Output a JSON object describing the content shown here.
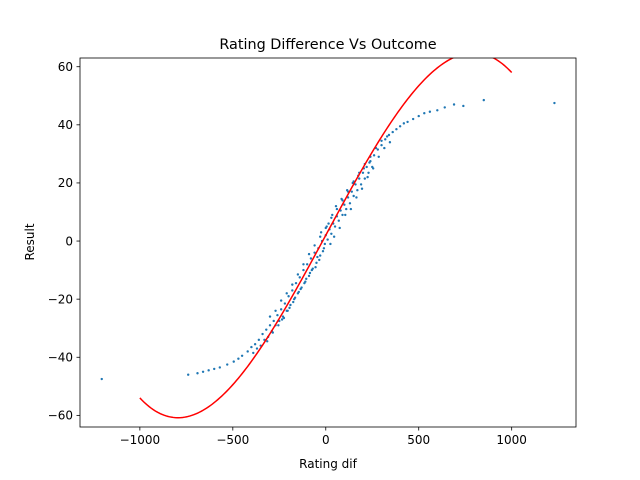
{
  "chart_data": {
    "type": "scatter",
    "title": "Rating Difference Vs Outcome",
    "xlabel": "Rating dif",
    "ylabel": "Result",
    "xlim": [
      -1322,
      1346
    ],
    "ylim": [
      -64,
      63
    ],
    "xticks": [
      -1000,
      -500,
      0,
      500,
      1000
    ],
    "yticks": [
      -60,
      -40,
      -20,
      0,
      20,
      40,
      60
    ],
    "grid": false,
    "colors": {
      "scatter": "#1f77b4",
      "fit": "#ff0000"
    },
    "series": [
      {
        "kind": "scatter",
        "points": [
          [
            -1205,
            -47.5
          ],
          [
            -740,
            -46
          ],
          [
            -690,
            -45.5
          ],
          [
            -660,
            -45
          ],
          [
            -630,
            -44.5
          ],
          [
            -600,
            -44
          ],
          [
            -570,
            -43.5
          ],
          [
            -530,
            -42.5
          ],
          [
            -495,
            -41.5
          ],
          [
            -470,
            -40.5
          ],
          [
            -450,
            -39.5
          ],
          [
            -420,
            -38
          ],
          [
            -400,
            -36.5
          ],
          [
            -380,
            -35.5
          ],
          [
            -360,
            -34
          ],
          [
            -340,
            -32
          ],
          [
            -320,
            -30.5
          ],
          [
            -300,
            -29
          ],
          [
            -280,
            -27.5
          ],
          [
            -260,
            -25.5
          ],
          [
            -240,
            -23.5
          ],
          [
            -220,
            -21.5
          ],
          [
            -200,
            -19
          ],
          [
            -180,
            -17
          ],
          [
            -160,
            -14.5
          ],
          [
            -140,
            -12.5
          ],
          [
            -120,
            -10
          ],
          [
            -100,
            -8
          ],
          [
            -80,
            -6
          ],
          [
            -60,
            -4
          ],
          [
            -40,
            -2.5
          ],
          [
            -20,
            0
          ],
          [
            0,
            2
          ],
          [
            20,
            4
          ],
          [
            40,
            6
          ],
          [
            60,
            8.5
          ],
          [
            80,
            10.5
          ],
          [
            100,
            12.5
          ],
          [
            120,
            15
          ],
          [
            140,
            17
          ],
          [
            160,
            19.5
          ],
          [
            180,
            21.5
          ],
          [
            200,
            23.5
          ],
          [
            220,
            25.5
          ],
          [
            240,
            27.5
          ],
          [
            260,
            29.5
          ],
          [
            280,
            31.5
          ],
          [
            300,
            33
          ],
          [
            320,
            35
          ],
          [
            340,
            36.5
          ],
          [
            360,
            37.5
          ],
          [
            380,
            38.5
          ],
          [
            400,
            39.5
          ],
          [
            420,
            40.5
          ],
          [
            440,
            41
          ],
          [
            470,
            42
          ],
          [
            500,
            43
          ],
          [
            530,
            44
          ],
          [
            560,
            44.5
          ],
          [
            600,
            45
          ],
          [
            640,
            46
          ],
          [
            690,
            47
          ],
          [
            740,
            46.5
          ],
          [
            850,
            48.5
          ],
          [
            1230,
            47.5
          ],
          [
            -330,
            -34
          ],
          [
            -310,
            -33
          ],
          [
            -290,
            -31
          ],
          [
            -270,
            -29
          ],
          [
            -250,
            -27.5
          ],
          [
            -230,
            -26
          ],
          [
            -210,
            -24
          ],
          [
            -190,
            -22
          ],
          [
            -170,
            -20
          ],
          [
            -150,
            -18
          ],
          [
            -130,
            -16
          ],
          [
            -110,
            -14
          ],
          [
            -90,
            -12
          ],
          [
            -70,
            -9.5
          ],
          [
            -50,
            -7.5
          ],
          [
            -30,
            -5
          ],
          [
            -10,
            -2.5
          ],
          [
            10,
            0.5
          ],
          [
            30,
            2.5
          ],
          [
            50,
            5
          ],
          [
            70,
            7
          ],
          [
            90,
            9
          ],
          [
            110,
            11
          ],
          [
            130,
            13
          ],
          [
            150,
            15.5
          ],
          [
            170,
            17.5
          ],
          [
            190,
            19.5
          ],
          [
            210,
            21.5
          ],
          [
            230,
            23.5
          ],
          [
            250,
            25.5
          ],
          [
            -300,
            -26
          ],
          [
            -270,
            -24
          ],
          [
            -240,
            -20.5
          ],
          [
            -210,
            -18
          ],
          [
            -180,
            -15
          ],
          [
            -150,
            -11.5
          ],
          [
            -120,
            -8
          ],
          [
            -90,
            -4.5
          ],
          [
            -60,
            -1.5
          ],
          [
            -30,
            1.5
          ],
          [
            0,
            4.5
          ],
          [
            30,
            8
          ],
          [
            60,
            11
          ],
          [
            90,
            14
          ],
          [
            120,
            17
          ],
          [
            150,
            20.5
          ],
          [
            180,
            23.5
          ],
          [
            210,
            26.5
          ],
          [
            240,
            29
          ],
          [
            270,
            32
          ],
          [
            300,
            34.5
          ],
          [
            330,
            36
          ],
          [
            -350,
            -36
          ],
          [
            -370,
            -37
          ],
          [
            -390,
            -38.5
          ],
          [
            25,
            -1
          ],
          [
            -25,
            3
          ],
          [
            45,
            1.5
          ],
          [
            -45,
            -5.5
          ],
          [
            75,
            4.5
          ],
          [
            -75,
            -10
          ],
          [
            105,
            9
          ],
          [
            -105,
            -13
          ],
          [
            135,
            11
          ],
          [
            -135,
            -16.5
          ],
          [
            165,
            15
          ],
          [
            -165,
            -19.5
          ],
          [
            195,
            18
          ],
          [
            -195,
            -23
          ],
          [
            225,
            22
          ],
          [
            -225,
            -26.5
          ],
          [
            255,
            25
          ],
          [
            -255,
            -29
          ],
          [
            285,
            29
          ],
          [
            -285,
            -31.5
          ],
          [
            315,
            32
          ],
          [
            -315,
            -34.5
          ],
          [
            345,
            34
          ],
          [
            5,
            5
          ],
          [
            -5,
            -1
          ],
          [
            15,
            6
          ],
          [
            -15,
            -3.5
          ],
          [
            35,
            9
          ],
          [
            -35,
            -6.5
          ],
          [
            55,
            12
          ],
          [
            -55,
            -9
          ],
          [
            85,
            14.5
          ],
          [
            -85,
            -11
          ],
          [
            115,
            17.5
          ],
          [
            -115,
            -14.5
          ],
          [
            145,
            20
          ],
          [
            -145,
            -17.5
          ],
          [
            175,
            22.5
          ],
          [
            -175,
            -21
          ],
          [
            205,
            25
          ],
          [
            -205,
            -24
          ],
          [
            235,
            27
          ],
          [
            -235,
            -27
          ]
        ]
      },
      {
        "kind": "line",
        "fit": "cubic",
        "x_range": [
          -1000,
          1000
        ],
        "coefficients": [
          2.0,
          0.1185,
          0,
          -6.25e-08
        ]
      }
    ]
  }
}
